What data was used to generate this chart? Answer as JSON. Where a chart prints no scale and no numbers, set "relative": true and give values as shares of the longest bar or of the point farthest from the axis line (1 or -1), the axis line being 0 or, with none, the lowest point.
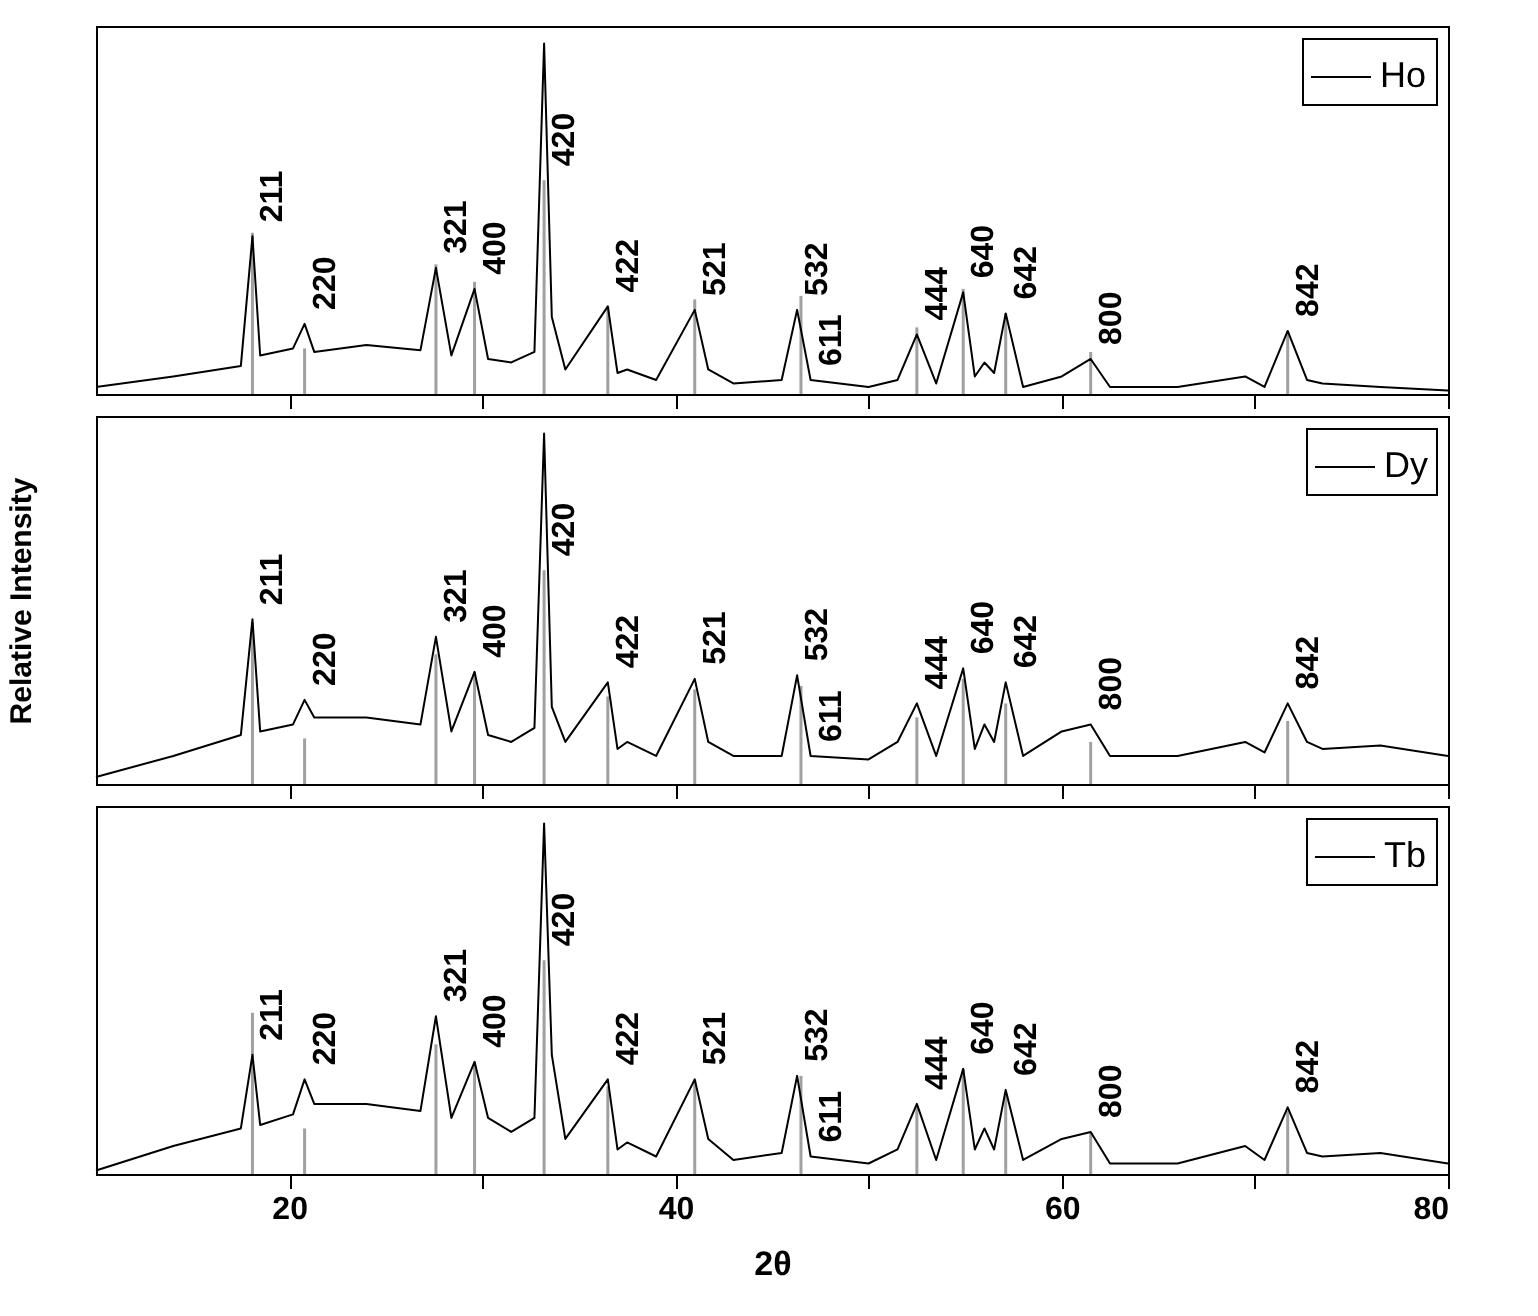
{
  "chart_data": [
    {
      "type": "line",
      "relative": true,
      "xlim": [
        10,
        80
      ],
      "xticks": [
        20,
        {
          "value": 30,
          "label": null
        },
        40,
        {
          "value": 50,
          "label": null
        },
        60,
        {
          "value": 70,
          "label": null
        },
        80
      ],
      "tick_labels": false,
      "legend": "top right",
      "series": [
        {
          "type": "bar",
          "color": "#a0a0a0",
          "x": [
            18.1,
            20.8,
            27.6,
            29.6,
            33.2,
            36.5,
            41.0,
            46.5,
            52.5,
            54.9,
            57.1,
            61.5,
            71.7
          ],
          "values": [
            0.46,
            0.13,
            0.37,
            0.32,
            0.61,
            0.25,
            0.27,
            0.28,
            0.19,
            0.3,
            0.23,
            0.12,
            0.18
          ]
        },
        {
          "name": "Ho",
          "color": "#000000",
          "x": [
            10,
            14,
            17.5,
            18.1,
            18.5,
            20.2,
            20.8,
            21.3,
            24,
            26.8,
            27.6,
            28.4,
            29.6,
            30.3,
            31.5,
            32.7,
            33.2,
            33.6,
            34.3,
            36.5,
            37,
            37.5,
            39,
            41.0,
            41.7,
            43,
            45.5,
            46.3,
            47,
            50,
            51.5,
            52.5,
            53.5,
            54.9,
            55.5,
            56,
            56.5,
            57.1,
            58,
            60,
            61.5,
            62.5,
            66,
            69.5,
            70.5,
            71.7,
            72.7,
            73.5,
            76.5,
            80
          ],
          "values": [
            0.02,
            0.05,
            0.08,
            0.45,
            0.11,
            0.13,
            0.2,
            0.12,
            0.14,
            0.125,
            0.36,
            0.11,
            0.3,
            0.1,
            0.09,
            0.12,
            1,
            0.22,
            0.07,
            0.25,
            0.06,
            0.07,
            0.04,
            0.24,
            0.07,
            0.03,
            0.04,
            0.24,
            0.04,
            0.02,
            0.04,
            0.17,
            0.03,
            0.29,
            0.05,
            0.09,
            0.06,
            0.23,
            0.02,
            0.05,
            0.1,
            0.02,
            0.02,
            0.05,
            0.02,
            0.18,
            0.04,
            0.03,
            0.02,
            0.01
          ]
        }
      ],
      "annotations": [
        {
          "text": "211",
          "x": 18.1,
          "y": 0.45
        },
        {
          "text": "220",
          "x": 20.8,
          "y": 0.2
        },
        {
          "text": "321",
          "x": 27.6,
          "y": 0.36
        },
        {
          "text": "400",
          "x": 29.6,
          "y": 0.3
        },
        {
          "text": "420",
          "x": 33.2,
          "y": 0.61
        },
        {
          "text": "422",
          "x": 36.5,
          "y": 0.25
        },
        {
          "text": "521",
          "x": 41.0,
          "y": 0.24
        },
        {
          "text": "532",
          "x": 46.3,
          "y": 0.24
        },
        {
          "text": "611",
          "x": 47,
          "y": 0.04
        },
        {
          "text": "444",
          "x": 52.5,
          "y": 0.17
        },
        {
          "text": "640",
          "x": 54.9,
          "y": 0.29
        },
        {
          "text": "642",
          "x": 57.1,
          "y": 0.23
        },
        {
          "text": "800",
          "x": 61.5,
          "y": 0.1
        },
        {
          "text": "842",
          "x": 71.7,
          "y": 0.18
        }
      ]
    },
    {
      "type": "line",
      "relative": true,
      "ylabel": "Relative Intensity",
      "xlim": [
        10,
        80
      ],
      "xticks": [
        20,
        {
          "value": 30,
          "label": null
        },
        40,
        {
          "value": 50,
          "label": null
        },
        60,
        {
          "value": 70,
          "label": null
        },
        80
      ],
      "tick_labels": false,
      "legend": "top right",
      "series": [
        {
          "type": "bar",
          "color": "#a0a0a0",
          "x": [
            18.1,
            20.8,
            27.6,
            29.6,
            33.2,
            36.5,
            41.0,
            46.5,
            52.5,
            54.9,
            57.1,
            61.5,
            71.7
          ],
          "values": [
            0.46,
            0.13,
            0.37,
            0.32,
            0.61,
            0.25,
            0.27,
            0.28,
            0.19,
            0.3,
            0.23,
            0.12,
            0.18
          ]
        },
        {
          "name": "Dy",
          "color": "#000000",
          "x": [
            10,
            14,
            17.5,
            18.1,
            18.5,
            20.2,
            20.8,
            21.3,
            24,
            26.8,
            27.6,
            28.4,
            29.6,
            30.3,
            31.5,
            32.7,
            33.2,
            33.6,
            34.3,
            36.5,
            37,
            37.5,
            39,
            41.0,
            41.7,
            43,
            45.5,
            46.3,
            47,
            50,
            51.5,
            52.5,
            53.5,
            54.9,
            55.5,
            56,
            56.5,
            57.1,
            58,
            60,
            61.5,
            62.5,
            66,
            69.5,
            70.5,
            71.7,
            72.7,
            73.5,
            76.5,
            80
          ],
          "values": [
            0.02,
            0.08,
            0.14,
            0.47,
            0.15,
            0.17,
            0.24,
            0.19,
            0.19,
            0.17,
            0.42,
            0.15,
            0.32,
            0.14,
            0.12,
            0.16,
            1,
            0.22,
            0.12,
            0.29,
            0.1,
            0.12,
            0.08,
            0.3,
            0.12,
            0.08,
            0.08,
            0.31,
            0.08,
            0.07,
            0.12,
            0.23,
            0.08,
            0.33,
            0.1,
            0.17,
            0.12,
            0.29,
            0.08,
            0.15,
            0.17,
            0.08,
            0.08,
            0.12,
            0.09,
            0.23,
            0.12,
            0.1,
            0.11,
            0.08
          ]
        }
      ],
      "annotations": [
        {
          "text": "211",
          "x": 18.1,
          "y": 0.47
        },
        {
          "text": "220",
          "x": 20.8,
          "y": 0.24
        },
        {
          "text": "321",
          "x": 27.6,
          "y": 0.42
        },
        {
          "text": "400",
          "x": 29.6,
          "y": 0.32
        },
        {
          "text": "420",
          "x": 33.2,
          "y": 0.61
        },
        {
          "text": "422",
          "x": 36.5,
          "y": 0.29
        },
        {
          "text": "521",
          "x": 41.0,
          "y": 0.3
        },
        {
          "text": "532",
          "x": 46.3,
          "y": 0.31
        },
        {
          "text": "611",
          "x": 47,
          "y": 0.08
        },
        {
          "text": "444",
          "x": 52.5,
          "y": 0.23
        },
        {
          "text": "640",
          "x": 54.9,
          "y": 0.33
        },
        {
          "text": "642",
          "x": 57.1,
          "y": 0.29
        },
        {
          "text": "800",
          "x": 61.5,
          "y": 0.17
        },
        {
          "text": "842",
          "x": 71.7,
          "y": 0.23
        }
      ]
    },
    {
      "type": "line",
      "relative": true,
      "xlabel": "2θ",
      "xlim": [
        10,
        80
      ],
      "xticks": [
        20,
        {
          "value": 30,
          "label": null
        },
        40,
        {
          "value": 50,
          "label": null
        },
        60,
        {
          "value": 70,
          "label": null
        },
        80
      ],
      "tick_labels": "x",
      "legend": "top right",
      "series": [
        {
          "type": "bar",
          "color": "#a0a0a0",
          "x": [
            18.1,
            20.8,
            27.6,
            29.6,
            33.2,
            36.5,
            41.0,
            46.5,
            52.5,
            54.9,
            57.1,
            61.5,
            71.7
          ],
          "values": [
            0.46,
            0.13,
            0.37,
            0.32,
            0.61,
            0.25,
            0.27,
            0.28,
            0.19,
            0.3,
            0.23,
            0.12,
            0.18
          ]
        },
        {
          "name": "Tb",
          "color": "#000000",
          "x": [
            10,
            14,
            17.5,
            18.1,
            18.5,
            20.2,
            20.8,
            21.3,
            24,
            26.8,
            27.6,
            28.4,
            29.6,
            30.3,
            31.5,
            32.7,
            33.2,
            33.6,
            34.3,
            36.5,
            37,
            37.5,
            39,
            41.0,
            41.7,
            43,
            45.5,
            46.3,
            47,
            50,
            51.5,
            52.5,
            53.5,
            54.9,
            55.5,
            56,
            56.5,
            57.1,
            58,
            60,
            61.5,
            62.5,
            66,
            69.5,
            70.5,
            71.7,
            72.7,
            73.5,
            76.5,
            80
          ],
          "values": [
            0.01,
            0.08,
            0.13,
            0.34,
            0.14,
            0.17,
            0.27,
            0.2,
            0.2,
            0.18,
            0.45,
            0.16,
            0.32,
            0.16,
            0.12,
            0.16,
            1,
            0.34,
            0.1,
            0.27,
            0.07,
            0.09,
            0.05,
            0.27,
            0.1,
            0.04,
            0.06,
            0.28,
            0.05,
            0.03,
            0.07,
            0.2,
            0.04,
            0.3,
            0.07,
            0.13,
            0.07,
            0.24,
            0.04,
            0.1,
            0.12,
            0.03,
            0.03,
            0.08,
            0.04,
            0.19,
            0.06,
            0.05,
            0.06,
            0.03
          ]
        }
      ],
      "annotations": [
        {
          "text": "211",
          "x": 18.1,
          "y": 0.34
        },
        {
          "text": "220",
          "x": 20.8,
          "y": 0.27
        },
        {
          "text": "321",
          "x": 27.6,
          "y": 0.45
        },
        {
          "text": "400",
          "x": 29.6,
          "y": 0.32
        },
        {
          "text": "420",
          "x": 33.2,
          "y": 0.61
        },
        {
          "text": "422",
          "x": 36.5,
          "y": 0.27
        },
        {
          "text": "521",
          "x": 41.0,
          "y": 0.27
        },
        {
          "text": "532",
          "x": 46.3,
          "y": 0.28
        },
        {
          "text": "611",
          "x": 47,
          "y": 0.05
        },
        {
          "text": "444",
          "x": 52.5,
          "y": 0.2
        },
        {
          "text": "640",
          "x": 54.9,
          "y": 0.3
        },
        {
          "text": "642",
          "x": 57.1,
          "y": 0.24
        },
        {
          "text": "800",
          "x": 61.5,
          "y": 0.12
        },
        {
          "text": "842",
          "x": 71.7,
          "y": 0.19
        }
      ]
    }
  ]
}
